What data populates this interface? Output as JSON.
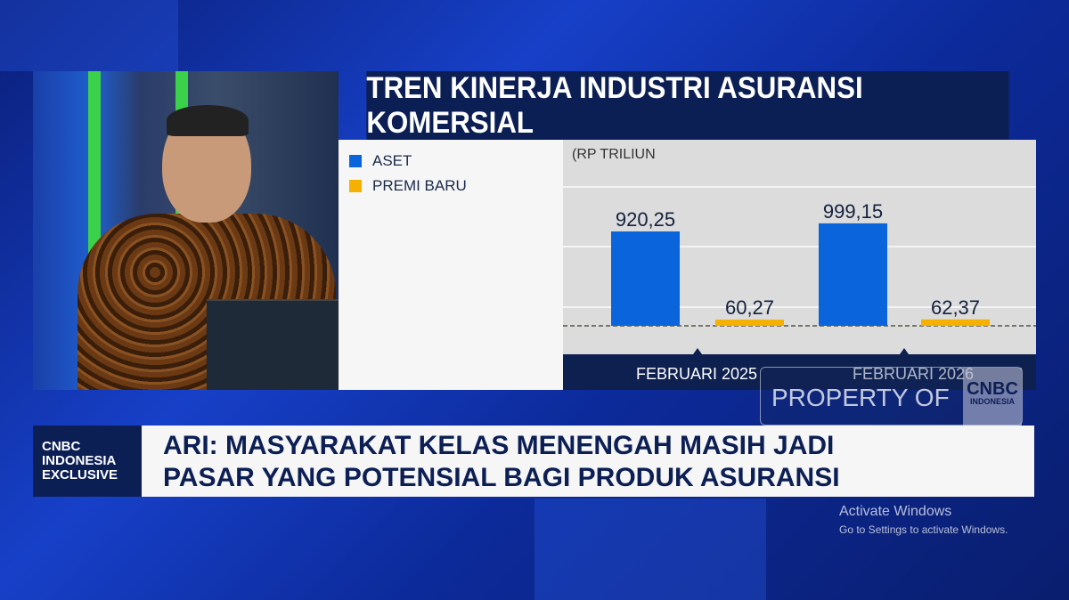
{
  "title": "TREN KINERJA INDUSTRI ASURANSI KOMERSIAL",
  "chart_data": {
    "type": "bar",
    "title": "TREN KINERJA INDUSTRI ASURANSI KOMERSIAL",
    "ylabel": "(RP TRILIUN",
    "categories": [
      "FEBRUARI 2025",
      "FEBRUARI 2026"
    ],
    "series": [
      {
        "name": "ASET",
        "color": "#0a64dc",
        "values": [
          920.25,
          999.15
        ],
        "labels": [
          "920,25",
          "999,15"
        ]
      },
      {
        "name": "PREMI BARU",
        "color": "#f5b000",
        "values": [
          60.27,
          62.37
        ],
        "labels": [
          "60,27",
          "62,37"
        ]
      }
    ],
    "legend": "top-left",
    "grid": true
  },
  "watermark": {
    "text": "PROPERTY OF",
    "logo_line1": "CNBC",
    "logo_line2": "INDONESIA"
  },
  "badge": {
    "line1": "CNBC",
    "line2": "INDONESIA",
    "line3": "EXCLUSIVE"
  },
  "headline": {
    "line1": "ARI: MASYARAKAT KELAS MENENGAH MASIH JADI",
    "line2": "PASAR YANG POTENSIAL BAGI PRODUK ASURANSI"
  },
  "windows": {
    "line1": "Activate Windows",
    "line2": "Go to Settings to activate Windows."
  }
}
